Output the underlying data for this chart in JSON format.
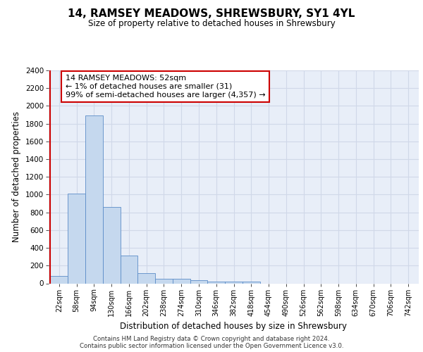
{
  "title": "14, RAMSEY MEADOWS, SHREWSBURY, SY1 4YL",
  "subtitle": "Size of property relative to detached houses in Shrewsbury",
  "xlabel": "Distribution of detached houses by size in Shrewsbury",
  "ylabel": "Number of detached properties",
  "bar_color": "#c5d8ee",
  "bar_edge_color": "#5b8cc8",
  "background_color": "#e8eef8",
  "grid_color": "#d0d8e8",
  "annotation_text": "14 RAMSEY MEADOWS: 52sqm\n← 1% of detached houses are smaller (31)\n99% of semi-detached houses are larger (4,357) →",
  "annotation_box_color": "#ffffff",
  "annotation_box_edge_color": "#cc0000",
  "vline_color": "#cc0000",
  "bin_labels": [
    "22sqm",
    "58sqm",
    "94sqm",
    "130sqm",
    "166sqm",
    "202sqm",
    "238sqm",
    "274sqm",
    "310sqm",
    "346sqm",
    "382sqm",
    "418sqm",
    "454sqm",
    "490sqm",
    "526sqm",
    "562sqm",
    "598sqm",
    "634sqm",
    "670sqm",
    "706sqm",
    "742sqm"
  ],
  "bar_heights": [
    85,
    1010,
    1890,
    860,
    315,
    115,
    50,
    48,
    33,
    22,
    18,
    18,
    0,
    0,
    0,
    0,
    0,
    0,
    0,
    0,
    0
  ],
  "ylim": [
    0,
    2400
  ],
  "yticks": [
    0,
    200,
    400,
    600,
    800,
    1000,
    1200,
    1400,
    1600,
    1800,
    2000,
    2200,
    2400
  ],
  "footer_text": "Contains HM Land Registry data © Crown copyright and database right 2024.\nContains public sector information licensed under the Open Government Licence v3.0."
}
